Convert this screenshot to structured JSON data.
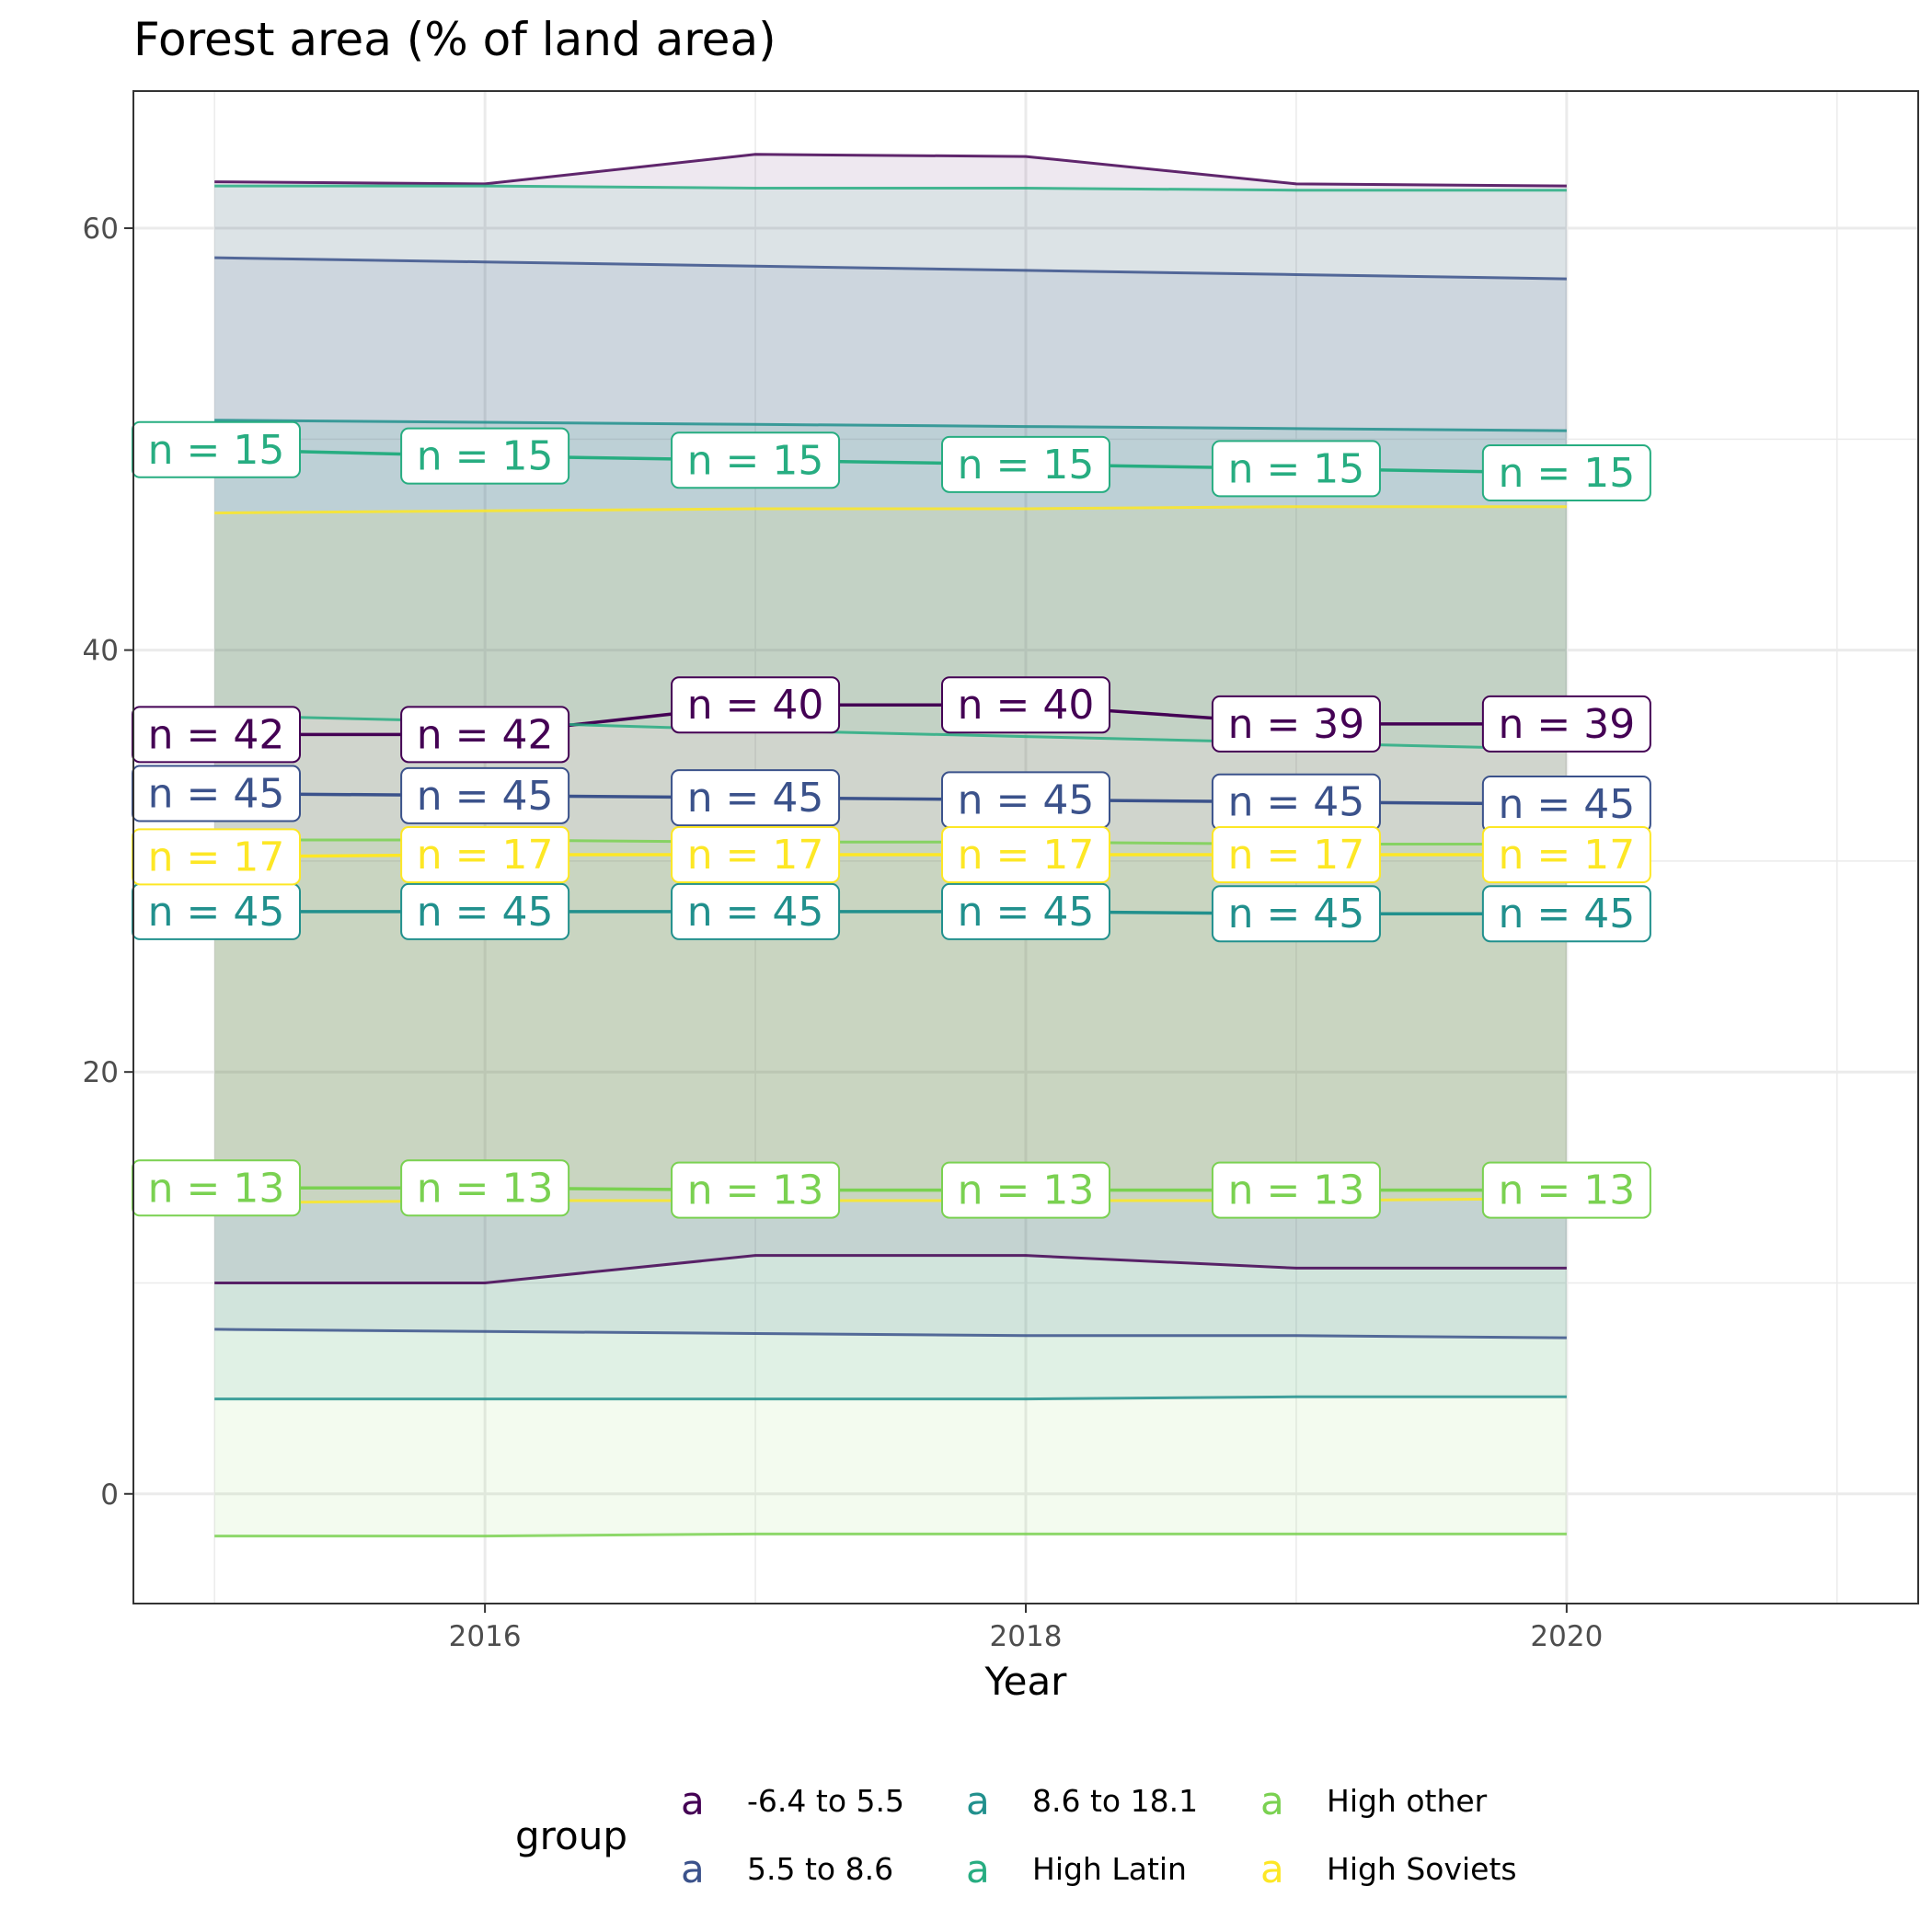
{
  "chart_data": {
    "type": "line",
    "title": "Forest area (% of land area)",
    "xlabel": "Year",
    "ylabel": "",
    "xlim": [
      2014.7,
      2021.3
    ],
    "ylim": [
      -5.2,
      66.5
    ],
    "x_ticks": [
      2016,
      2018,
      2020
    ],
    "y_ticks": [
      0,
      20,
      40,
      60
    ],
    "grid": true,
    "legend_position": "bottom",
    "legend_title": "group",
    "x": [
      2015,
      2016,
      2017,
      2018,
      2019,
      2020
    ],
    "series": [
      {
        "name": "-6.4 to 5.5",
        "color": "#440154",
        "mean": [
          36.0,
          36.0,
          37.4,
          37.4,
          36.5,
          36.5
        ],
        "upper": [
          62.2,
          62.1,
          63.5,
          63.4,
          62.1,
          62.0
        ],
        "lower": [
          10.0,
          10.0,
          11.3,
          11.3,
          10.7,
          10.7
        ],
        "n_labels": [
          "n = 42",
          "n = 42",
          "n = 40",
          "n = 40",
          "n = 39",
          "n = 39"
        ]
      },
      {
        "name": "5.5 to 8.6",
        "color": "#3b528b",
        "mean": [
          33.2,
          33.1,
          33.0,
          32.9,
          32.8,
          32.7
        ],
        "upper": [
          58.6,
          58.4,
          58.2,
          58.0,
          57.8,
          57.6
        ],
        "lower": [
          7.8,
          7.7,
          7.6,
          7.5,
          7.5,
          7.4
        ],
        "n_labels": [
          "n = 45",
          "n = 45",
          "n = 45",
          "n = 45",
          "n = 45",
          "n = 45"
        ]
      },
      {
        "name": "8.6 to 18.1",
        "color": "#21908d",
        "mean": [
          27.6,
          27.6,
          27.6,
          27.6,
          27.5,
          27.5
        ],
        "upper": [
          50.9,
          50.8,
          50.7,
          50.6,
          50.5,
          50.4
        ],
        "lower": [
          4.5,
          4.5,
          4.5,
          4.5,
          4.6,
          4.6
        ],
        "n_labels": [
          "n = 45",
          "n = 45",
          "n = 45",
          "n = 45",
          "n = 45",
          "n = 45"
        ]
      },
      {
        "name": "High Latin",
        "color": "#27ad81",
        "mean": [
          49.5,
          49.2,
          49.0,
          48.8,
          48.6,
          48.4
        ],
        "upper": [
          62.0,
          62.0,
          61.9,
          61.9,
          61.8,
          61.8
        ],
        "lower": [
          36.9,
          36.6,
          36.2,
          35.9,
          35.6,
          35.3
        ],
        "n_labels": [
          "n = 15",
          "n = 15",
          "n = 15",
          "n = 15",
          "n = 15",
          "n = 15"
        ]
      },
      {
        "name": "High other",
        "color": "#7ad151",
        "mean": [
          14.5,
          14.5,
          14.4,
          14.4,
          14.4,
          14.4
        ],
        "upper": [
          31.0,
          31.0,
          30.9,
          30.9,
          30.8,
          30.8
        ],
        "lower": [
          -2.0,
          -2.0,
          -1.9,
          -1.9,
          -1.9,
          -1.9
        ],
        "n_labels": [
          "n = 13",
          "n = 13",
          "n = 13",
          "n = 13",
          "n = 13",
          "n = 13"
        ]
      },
      {
        "name": "High Soviets",
        "color": "#fde725",
        "mean": [
          30.2,
          30.3,
          30.3,
          30.3,
          30.3,
          30.3
        ],
        "upper": [
          46.5,
          46.6,
          46.7,
          46.7,
          46.8,
          46.8
        ],
        "lower": [
          13.8,
          13.9,
          13.9,
          13.9,
          13.9,
          14.0
        ],
        "n_labels": [
          "n = 17",
          "n = 17",
          "n = 17",
          "n = 17",
          "n = 17",
          "n = 17"
        ]
      }
    ]
  }
}
